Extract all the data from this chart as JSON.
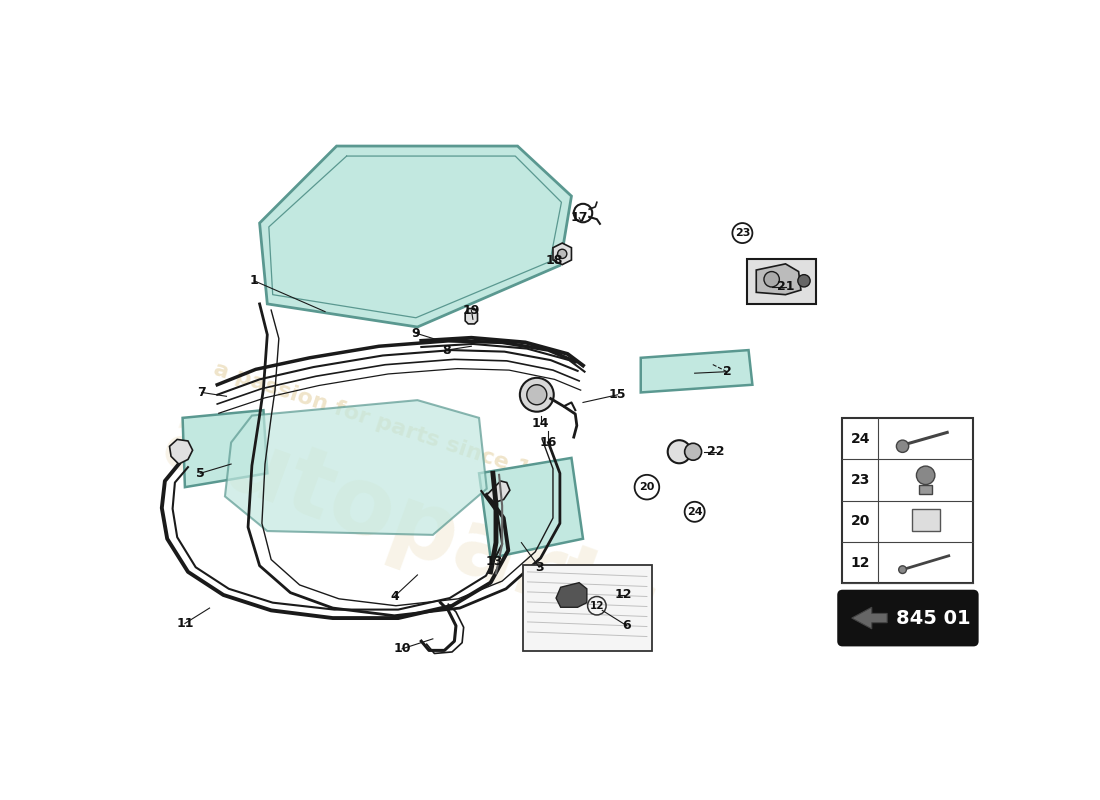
{
  "bg_color": "#ffffff",
  "part_number_box": "845 01",
  "watermark_color": "#c8a040",
  "glass_fill": "#c2e8e0",
  "glass_edge": "#5a9890",
  "line_color": "#1a1a1a",
  "gray_fill": "#bbbbbb",
  "light_gray": "#e0e0e0",
  "dark_gray": "#666666",
  "legend_items": [
    "24",
    "23",
    "20",
    "12"
  ]
}
